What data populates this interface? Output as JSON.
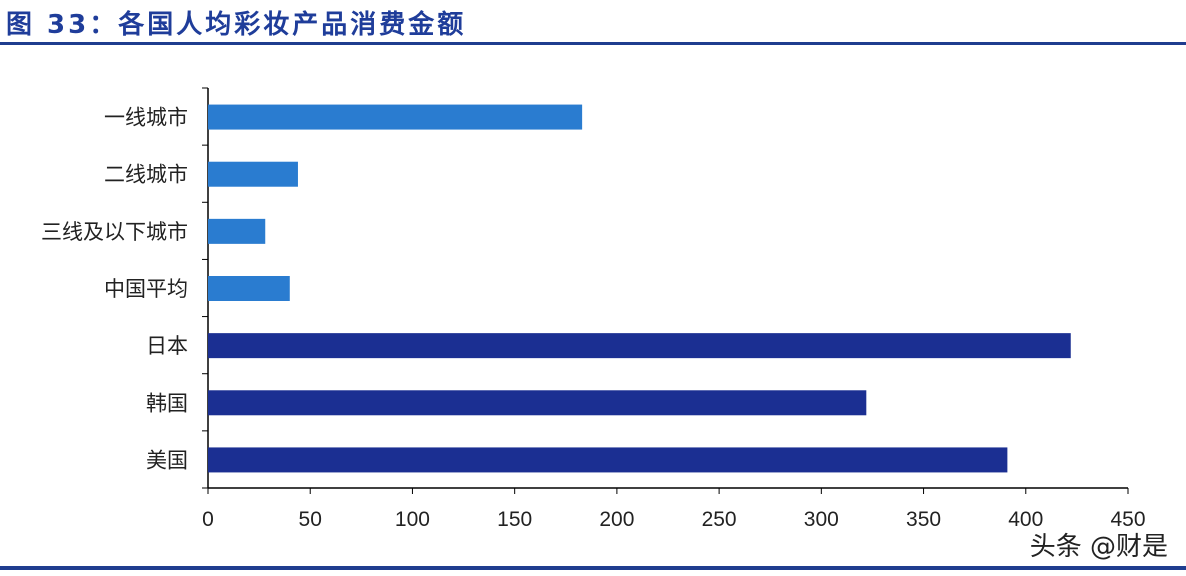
{
  "header": {
    "title": "图 33：各国人均彩妆产品消费金额"
  },
  "watermark": "头条 @财是",
  "colors": {
    "china_bars": "#2a7cd0",
    "foreign_bars": "#1b2f92",
    "rule": "#1f3d8f"
  },
  "chart_data": {
    "type": "bar",
    "orientation": "horizontal",
    "categories": [
      "一线城市",
      "二线城市",
      "三线及以下城市",
      "中国平均",
      "日本",
      "韩国",
      "美国"
    ],
    "values": [
      183,
      44,
      28,
      40,
      422,
      322,
      391
    ],
    "xlim": [
      0,
      450
    ],
    "xticks": [
      0,
      50,
      100,
      150,
      200,
      250,
      300,
      350,
      400,
      450
    ],
    "grid": false,
    "title": "",
    "xlabel": "",
    "ylabel": ""
  }
}
